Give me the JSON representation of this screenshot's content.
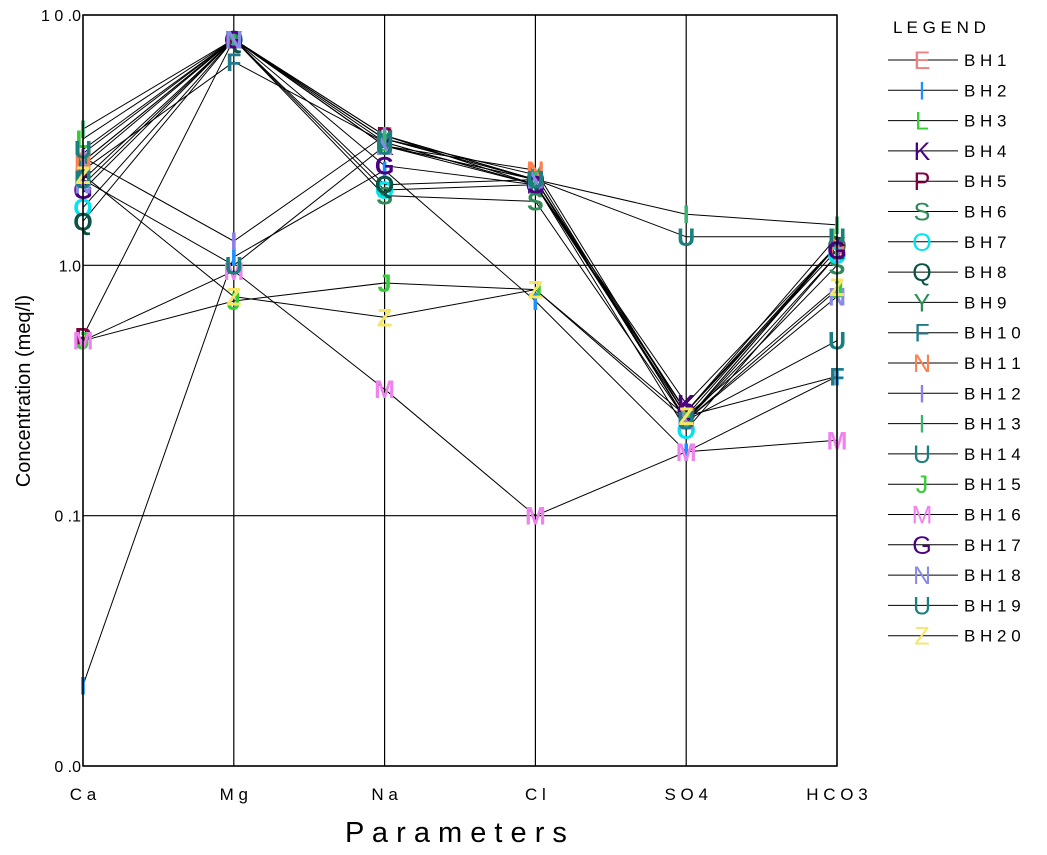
{
  "chart_data": {
    "type": "line",
    "subtype": "schoeller-diagram",
    "title": "",
    "xlabel": "P a r a m e t e r s",
    "ylabel": "Concentration (meq/l)",
    "yscale": "log",
    "ylim": [
      0.01,
      10.0
    ],
    "categories": [
      "Ca",
      "Mg",
      "Na",
      "Cl",
      "SO4",
      "HCO3"
    ],
    "category_labels": [
      "C a",
      "M g",
      "N a",
      "C l",
      "S O 4",
      "H C O 3"
    ],
    "ytick_values": [
      10.0,
      1.0,
      0.1,
      0.01
    ],
    "ytick_labels": [
      "1 0 .0",
      "1.0",
      "0 .1",
      "0 .0"
    ],
    "legend_title": "L E G E N D",
    "legend_position": "right",
    "series": [
      {
        "name": "BH1",
        "label": "B H 1",
        "marker": "E",
        "color": "#F08080",
        "line_color": "#000000",
        "values": [
          2.8,
          8.0,
          3.3,
          2.2,
          0.24,
          1.2
        ]
      },
      {
        "name": "BH2",
        "label": "B H 2",
        "marker": "I",
        "color": "#1E90FF",
        "line_color": "#000000",
        "values": [
          0.021,
          1.08,
          2.4,
          0.72,
          0.18,
          0.36
        ]
      },
      {
        "name": "BH3",
        "label": "B H 3",
        "marker": "L",
        "color": "#32CD32",
        "line_color": "#000000",
        "values": [
          3.2,
          8.0,
          3.1,
          2.1,
          0.26,
          1.3
        ]
      },
      {
        "name": "BH4",
        "label": "B H 4",
        "marker": "K",
        "color": "#4B0082",
        "line_color": "#000000",
        "values": [
          2.2,
          8.0,
          3.0,
          2.1,
          0.28,
          1.2
        ]
      },
      {
        "name": "BH5",
        "label": "B H 5",
        "marker": "P",
        "color": "#800040",
        "line_color": "#000000",
        "values": [
          0.52,
          8.0,
          3.3,
          2.1,
          0.26,
          1.2
        ]
      },
      {
        "name": "BH6",
        "label": "B H 6",
        "marker": "S",
        "color": "#2E8B57",
        "line_color": "#000000",
        "values": [
          2.5,
          8.0,
          1.9,
          1.8,
          0.24,
          1.0
        ]
      },
      {
        "name": "BH7",
        "label": "B H 7",
        "marker": "O",
        "color": "#00E5EE",
        "line_color": "#000000",
        "values": [
          1.7,
          8.0,
          2.0,
          2.1,
          0.22,
          1.1
        ]
      },
      {
        "name": "BH8",
        "label": "B H 8",
        "marker": "Q",
        "color": "#0B5345",
        "line_color": "#000000",
        "values": [
          1.5,
          8.0,
          2.1,
          2.2,
          0.26,
          1.2
        ]
      },
      {
        "name": "BH9",
        "label": "B H 9",
        "marker": "Y",
        "color": "#2E8B57",
        "line_color": "#000000",
        "values": [
          2.6,
          8.0,
          3.2,
          2.3,
          0.24,
          1.2
        ]
      },
      {
        "name": "BH10",
        "label": "B H 1 0",
        "marker": "F",
        "color": "#1F7A8C",
        "line_color": "#000000",
        "values": [
          2.4,
          6.5,
          3.1,
          2.1,
          0.25,
          0.36
        ]
      },
      {
        "name": "BH11",
        "label": "B H 1 1",
        "marker": "N",
        "color": "#FF7F50",
        "line_color": "#000000",
        "values": [
          2.6,
          8.0,
          3.0,
          2.4,
          0.25,
          1.2
        ]
      },
      {
        "name": "BH12",
        "label": "B H 1 2",
        "marker": "I",
        "color": "#8A7FE8",
        "line_color": "#000000",
        "values": [
          2.7,
          1.25,
          3.3,
          2.2,
          0.24,
          1.1
        ]
      },
      {
        "name": "BH13",
        "label": "B H 1 3",
        "marker": "I",
        "color": "#3CB371",
        "line_color": "#000000",
        "values": [
          3.5,
          8.0,
          3.2,
          2.2,
          1.6,
          1.45
        ]
      },
      {
        "name": "BH14",
        "label": "B H 1 4",
        "marker": "U",
        "color": "#1A7F7F",
        "line_color": "#000000",
        "values": [
          2.9,
          8.0,
          3.2,
          2.2,
          1.3,
          1.3
        ]
      },
      {
        "name": "BH15",
        "label": "B H 1 5",
        "marker": "J",
        "color": "#32CD32",
        "line_color": "#000000",
        "values": [
          0.5,
          0.72,
          0.85,
          0.8,
          0.24,
          0.8
        ]
      },
      {
        "name": "BH16",
        "label": "B H 1 6",
        "marker": "M",
        "color": "#EE82EE",
        "line_color": "#000000",
        "values": [
          0.5,
          0.95,
          0.32,
          0.1,
          0.18,
          0.2
        ]
      },
      {
        "name": "BH17",
        "label": "B H 1 7",
        "marker": "G",
        "color": "#4B0082",
        "line_color": "#000000",
        "values": [
          2.0,
          8.0,
          2.5,
          2.1,
          0.26,
          1.15
        ]
      },
      {
        "name": "BH18",
        "label": "B H 1 8",
        "marker": "N",
        "color": "#8A8AE8",
        "line_color": "#000000",
        "values": [
          2.1,
          8.0,
          3.0,
          2.2,
          0.24,
          0.75
        ]
      },
      {
        "name": "BH19",
        "label": "B H 1 9",
        "marker": "U",
        "color": "#1A7F7F",
        "line_color": "#000000",
        "values": [
          2.2,
          1.0,
          3.0,
          2.2,
          0.24,
          0.5
        ]
      },
      {
        "name": "BH20",
        "label": "B H 2 0",
        "marker": "Z",
        "color": "#F5E663",
        "line_color": "#000000",
        "values": [
          2.3,
          0.75,
          0.62,
          0.8,
          0.25,
          0.82
        ]
      }
    ]
  }
}
